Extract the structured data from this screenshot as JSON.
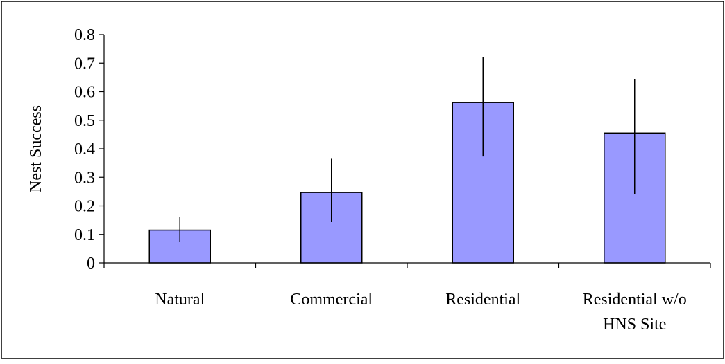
{
  "chart_data": {
    "type": "bar",
    "title": "",
    "xlabel": "",
    "ylabel": "Nest Success",
    "categories": [
      "Natural",
      "Commercial",
      "Residential",
      "Residential w/o HNS Site"
    ],
    "category_lines": [
      [
        "Natural"
      ],
      [
        "Commercial"
      ],
      [
        "Residential"
      ],
      [
        "Residential w/o",
        "HNS Site"
      ]
    ],
    "values": [
      0.115,
      0.247,
      0.562,
      0.455
    ],
    "error_low": [
      0.073,
      0.143,
      0.373,
      0.242
    ],
    "error_high": [
      0.16,
      0.365,
      0.72,
      0.645
    ],
    "ylim": [
      0,
      0.8
    ],
    "yticks": [
      0,
      0.1,
      0.2,
      0.3,
      0.4,
      0.5,
      0.6,
      0.7,
      0.8
    ],
    "ytick_labels": [
      "0",
      "0.1",
      "0.2",
      "0.3",
      "0.4",
      "0.5",
      "0.6",
      "0.7",
      "0.8"
    ],
    "grid": false,
    "legend": "none",
    "colors": {
      "bar_fill": "#9999ff",
      "bar_stroke": "#000000",
      "axis": "#000000",
      "error_bar": "#000000",
      "frame": "#000000",
      "background": "#ffffff"
    }
  }
}
